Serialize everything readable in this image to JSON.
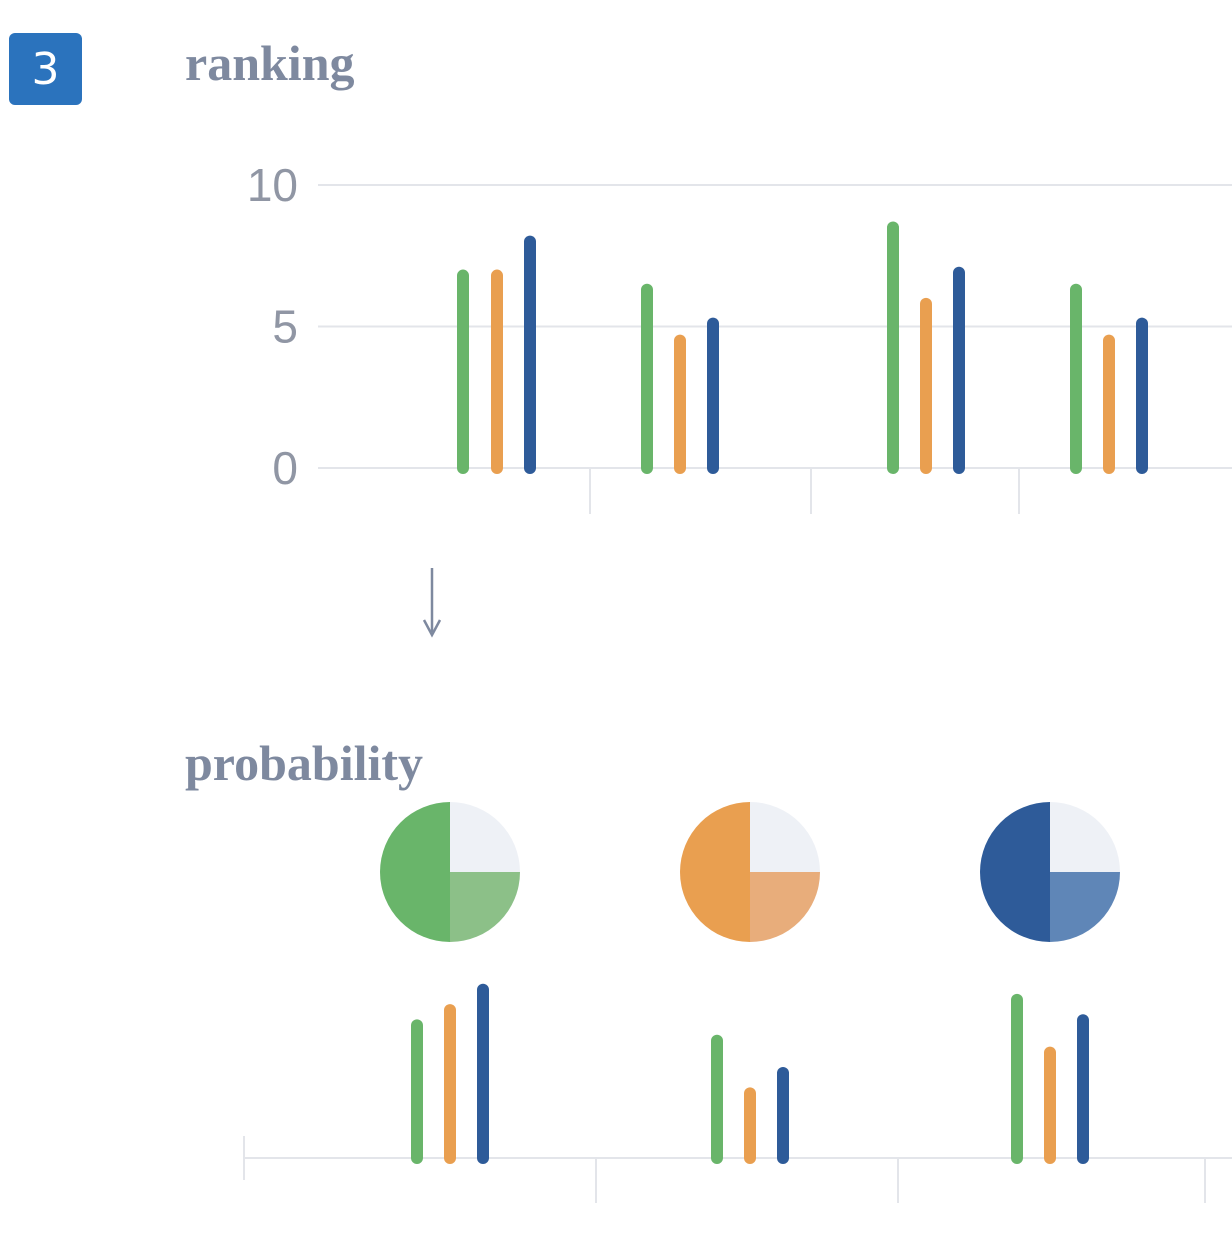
{
  "step_badge": {
    "number": "3",
    "color": "#2b73bd"
  },
  "titles": {
    "ranking": "ranking",
    "probability": "probability"
  },
  "colors": {
    "green": "#69b56a",
    "green_light": "#8cc088",
    "orange": "#e99f50",
    "orange_light": "#e8ad7b",
    "blue": "#2e5b99",
    "blue_light": "#5f86b7",
    "empty": "#eef1f6",
    "title": "#7e899f",
    "axis_label": "#9096a4",
    "grid": "#e3e5ea",
    "arrow": "#7e899f"
  },
  "chart_data": [
    {
      "type": "bar",
      "title": "ranking",
      "ylim": [
        0,
        10
      ],
      "yticks": [
        0,
        5,
        10
      ],
      "grid": true,
      "groups": [
        [
          6.8,
          6.8,
          8.0
        ],
        [
          6.3,
          4.5,
          5.1
        ],
        [
          8.5,
          5.8,
          6.9
        ],
        [
          6.3,
          4.5,
          5.1
        ]
      ],
      "series_colors": [
        "green",
        "orange",
        "blue"
      ]
    },
    {
      "type": "pie",
      "title": "probability",
      "pies": [
        {
          "slices": [
            0.5,
            0.25,
            0.25
          ],
          "colors": [
            "green",
            "green_light",
            "empty"
          ]
        },
        {
          "slices": [
            0.5,
            0.25,
            0.25
          ],
          "colors": [
            "orange",
            "orange_light",
            "empty"
          ]
        },
        {
          "slices": [
            0.5,
            0.25,
            0.25
          ],
          "colors": [
            "blue",
            "blue_light",
            "empty"
          ]
        }
      ]
    },
    {
      "type": "bar",
      "title": "",
      "ylim": [
        0,
        10
      ],
      "groups": [
        [
          7.8,
          8.7,
          9.9
        ],
        [
          6.9,
          3.8,
          5.0
        ],
        [
          9.3,
          6.2,
          8.1
        ]
      ],
      "series_colors": [
        "green",
        "orange",
        "blue"
      ]
    }
  ]
}
